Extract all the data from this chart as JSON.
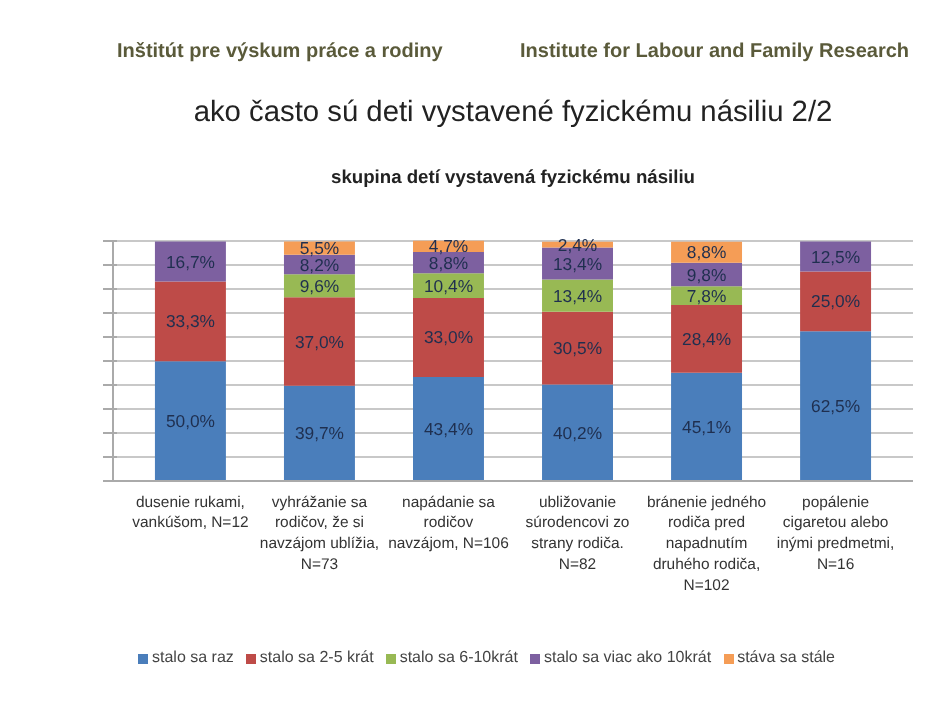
{
  "chart_data": {
    "type": "bar",
    "stacked": true,
    "title": "ako často sú deti vystavené fyzickému násiliu 2/2",
    "subtitle": "skupina detí vystavená fyzickému násiliu",
    "annotations": [
      "Inštitút pre výskum práce a rodiny",
      "Institute for Labour and Family Research"
    ],
    "categories": [
      "dusenie rukami,\nvankúšom, N=12",
      "vyhrážanie sa\nrodičov, že si\nnavzájom ublížia,\nN=73",
      "napádanie sa\nrodičov\nnavzájom, N=106",
      "ubližovanie\nsúrodencovi zo\nstrany rodiča.\nN=82",
      "bránenie jedného\nrodiča pred\nnapadnutím\ndruhého rodiča,\nN=102",
      "popálenie\ncigaretou alebo\ninými predmetmi,\nN=16"
    ],
    "series": [
      {
        "name": "stalo sa raz",
        "color": "#4a7ebb",
        "values": [
          50.0,
          39.7,
          43.4,
          40.2,
          45.1,
          62.5
        ],
        "value_labels": [
          "50,0%",
          "39,7%",
          "43,4%",
          "40,2%",
          "45,1%",
          "62,5%"
        ]
      },
      {
        "name": "stalo sa 2-5 krát",
        "color": "#be4b48",
        "values": [
          33.3,
          37.0,
          33.0,
          30.5,
          28.4,
          25.0
        ],
        "value_labels": [
          "33,3%",
          "37,0%",
          "33,0%",
          "30,5%",
          "28,4%",
          "25,0%"
        ]
      },
      {
        "name": "stalo sa 6-10krát",
        "color": "#98b954",
        "values": [
          null,
          9.6,
          10.4,
          13.4,
          7.8,
          null
        ],
        "value_labels": [
          null,
          "9,6%",
          "10,4%",
          "13,4%",
          "7,8%",
          null
        ]
      },
      {
        "name": "stalo sa viac ako 10krát",
        "color": "#7d60a0",
        "values": [
          16.7,
          8.2,
          8.8,
          13.4,
          9.8,
          12.5
        ],
        "value_labels": [
          "16,7%",
          "8,2%",
          "8,8%",
          "13,4%",
          "9,8%",
          "12,5%"
        ]
      },
      {
        "name": "stáva sa stále",
        "color": "#f59d56",
        "values": [
          null,
          5.5,
          4.7,
          2.4,
          8.8,
          null
        ],
        "value_labels": [
          null,
          "5,5%",
          "4,7%",
          "2,4%",
          "8,8%",
          null
        ]
      }
    ],
    "grid": "y",
    "legend": "bottom",
    "tick_labels": "x"
  }
}
